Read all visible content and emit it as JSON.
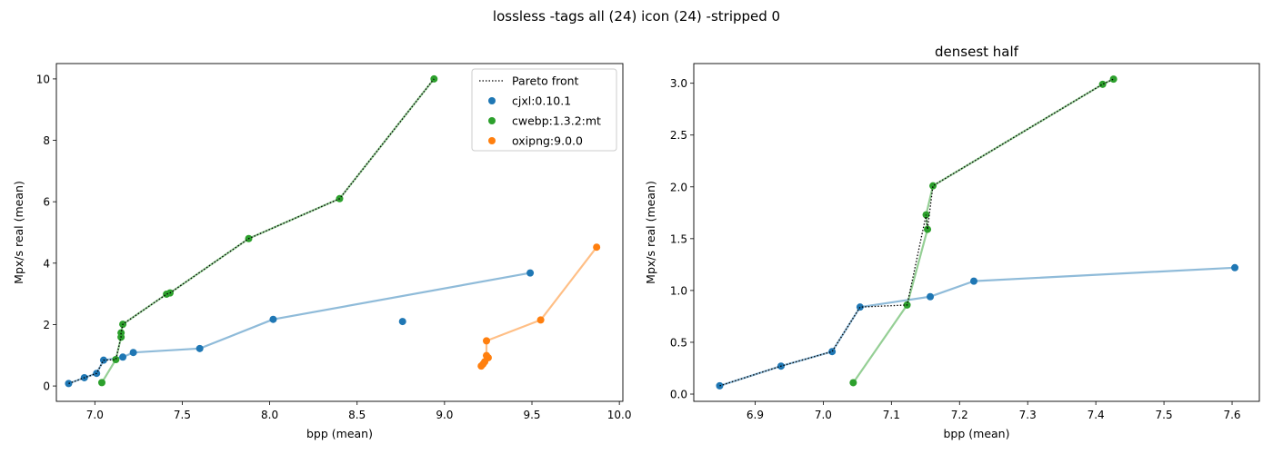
{
  "figure": {
    "suptitle": "lossless -tags all (24) icon (24) -stripped 0"
  },
  "chart_data": [
    {
      "type": "scatter",
      "title": "",
      "xlabel": "bpp (mean)",
      "ylabel": "Mpx/s real (mean)",
      "xlim": [
        6.78,
        10.02
      ],
      "ylim": [
        -0.5,
        10.5
      ],
      "xticks": [
        7.0,
        7.5,
        8.0,
        8.5,
        9.0,
        9.5,
        10.0
      ],
      "yticks": [
        0,
        2,
        4,
        6,
        8,
        10
      ],
      "legend": {
        "position": "top-right",
        "entries": [
          {
            "label": "Pareto front",
            "kind": "dotted-line",
            "color": "#000000"
          },
          {
            "label": "cjxl:0.10.1",
            "kind": "marker",
            "color": "#1f77b4"
          },
          {
            "label": "cwebp:1.3.2:mt",
            "kind": "marker",
            "color": "#2ca02c"
          },
          {
            "label": "oxipng:9.0.0",
            "kind": "marker",
            "color": "#ff7f0e"
          }
        ]
      },
      "series": [
        {
          "name": "cjxl:0.10.1",
          "color": "#1f77b4",
          "line": [
            [
              6.85,
              0.08
            ],
            [
              6.94,
              0.27
            ],
            [
              7.01,
              0.41
            ],
            [
              7.05,
              0.84
            ],
            [
              7.16,
              0.94
            ],
            [
              7.22,
              1.09
            ],
            [
              7.6,
              1.22
            ],
            [
              8.02,
              2.17
            ],
            [
              9.49,
              3.68
            ]
          ],
          "points": [
            [
              6.85,
              0.08
            ],
            [
              6.94,
              0.27
            ],
            [
              7.01,
              0.41
            ],
            [
              7.05,
              0.84
            ],
            [
              7.16,
              0.94
            ],
            [
              7.22,
              1.09
            ],
            [
              7.6,
              1.22
            ],
            [
              8.02,
              2.17
            ],
            [
              8.76,
              2.1
            ],
            [
              9.49,
              3.68
            ]
          ]
        },
        {
          "name": "cwebp:1.3.2:mt",
          "color": "#2ca02c",
          "line": [
            [
              7.04,
              0.11
            ],
            [
              7.12,
              0.86
            ],
            [
              7.15,
              1.59
            ],
            [
              7.15,
              1.73
            ],
            [
              7.16,
              2.01
            ],
            [
              7.41,
              2.99
            ],
            [
              7.43,
              3.03
            ],
            [
              7.88,
              4.8
            ],
            [
              8.4,
              6.1
            ],
            [
              8.94,
              10.0
            ]
          ],
          "points": [
            [
              7.04,
              0.11
            ],
            [
              7.12,
              0.86
            ],
            [
              7.15,
              1.59
            ],
            [
              7.15,
              1.73
            ],
            [
              7.16,
              2.01
            ],
            [
              7.41,
              2.99
            ],
            [
              7.43,
              3.03
            ],
            [
              7.88,
              4.8
            ],
            [
              8.4,
              6.1
            ],
            [
              8.94,
              10.0
            ]
          ]
        },
        {
          "name": "oxipng:9.0.0",
          "color": "#ff7f0e",
          "line": [
            [
              9.21,
              0.65
            ],
            [
              9.22,
              0.71
            ],
            [
              9.23,
              0.79
            ],
            [
              9.25,
              0.92
            ],
            [
              9.24,
              0.99
            ],
            [
              9.24,
              1.47
            ],
            [
              9.55,
              2.15
            ],
            [
              9.87,
              4.52
            ]
          ],
          "points": [
            [
              9.21,
              0.65
            ],
            [
              9.22,
              0.71
            ],
            [
              9.23,
              0.79
            ],
            [
              9.25,
              0.92
            ],
            [
              9.24,
              0.99
            ],
            [
              9.24,
              1.47
            ],
            [
              9.55,
              2.15
            ],
            [
              9.87,
              4.52
            ]
          ]
        }
      ],
      "pareto": [
        [
          6.85,
          0.08
        ],
        [
          6.94,
          0.27
        ],
        [
          7.01,
          0.41
        ],
        [
          7.05,
          0.84
        ],
        [
          7.12,
          0.86
        ],
        [
          7.15,
          1.59
        ],
        [
          7.15,
          1.73
        ],
        [
          7.16,
          2.01
        ],
        [
          7.41,
          2.99
        ],
        [
          7.43,
          3.03
        ],
        [
          7.88,
          4.8
        ],
        [
          8.4,
          6.1
        ],
        [
          8.94,
          10.0
        ]
      ]
    },
    {
      "type": "scatter",
      "title": "densest half",
      "xlabel": "bpp (mean)",
      "ylabel": "Mpx/s real (mean)",
      "xlim": [
        6.81,
        7.64
      ],
      "ylim": [
        -0.07,
        3.19
      ],
      "xticks": [
        6.9,
        7.0,
        7.1,
        7.2,
        7.3,
        7.4,
        7.5,
        7.6
      ],
      "yticks": [
        0.0,
        0.5,
        1.0,
        1.5,
        2.0,
        2.5,
        3.0
      ],
      "series": [
        {
          "name": "cjxl:0.10.1",
          "color": "#1f77b4",
          "line": [
            [
              6.848,
              0.08
            ],
            [
              6.938,
              0.27
            ],
            [
              7.013,
              0.41
            ],
            [
              7.054,
              0.84
            ],
            [
              7.157,
              0.94
            ],
            [
              7.221,
              1.09
            ],
            [
              7.604,
              1.22
            ]
          ],
          "points": [
            [
              6.848,
              0.08
            ],
            [
              6.938,
              0.27
            ],
            [
              7.013,
              0.41
            ],
            [
              7.054,
              0.84
            ],
            [
              7.157,
              0.94
            ],
            [
              7.221,
              1.09
            ],
            [
              7.604,
              1.22
            ]
          ]
        },
        {
          "name": "cwebp:1.3.2:mt",
          "color": "#2ca02c",
          "line": [
            [
              7.044,
              0.11
            ],
            [
              7.123,
              0.86
            ],
            [
              7.153,
              1.59
            ],
            [
              7.151,
              1.73
            ],
            [
              7.161,
              2.01
            ],
            [
              7.41,
              2.99
            ],
            [
              7.426,
              3.04
            ]
          ],
          "points": [
            [
              7.044,
              0.11
            ],
            [
              7.123,
              0.86
            ],
            [
              7.153,
              1.59
            ],
            [
              7.151,
              1.73
            ],
            [
              7.161,
              2.01
            ],
            [
              7.41,
              2.99
            ],
            [
              7.426,
              3.04
            ]
          ]
        }
      ],
      "pareto": [
        [
          6.848,
          0.08
        ],
        [
          6.938,
          0.27
        ],
        [
          7.013,
          0.41
        ],
        [
          7.054,
          0.84
        ],
        [
          7.123,
          0.86
        ],
        [
          7.151,
          1.73
        ],
        [
          7.153,
          1.59
        ],
        [
          7.161,
          2.01
        ],
        [
          7.41,
          2.99
        ],
        [
          7.426,
          3.04
        ]
      ]
    }
  ]
}
